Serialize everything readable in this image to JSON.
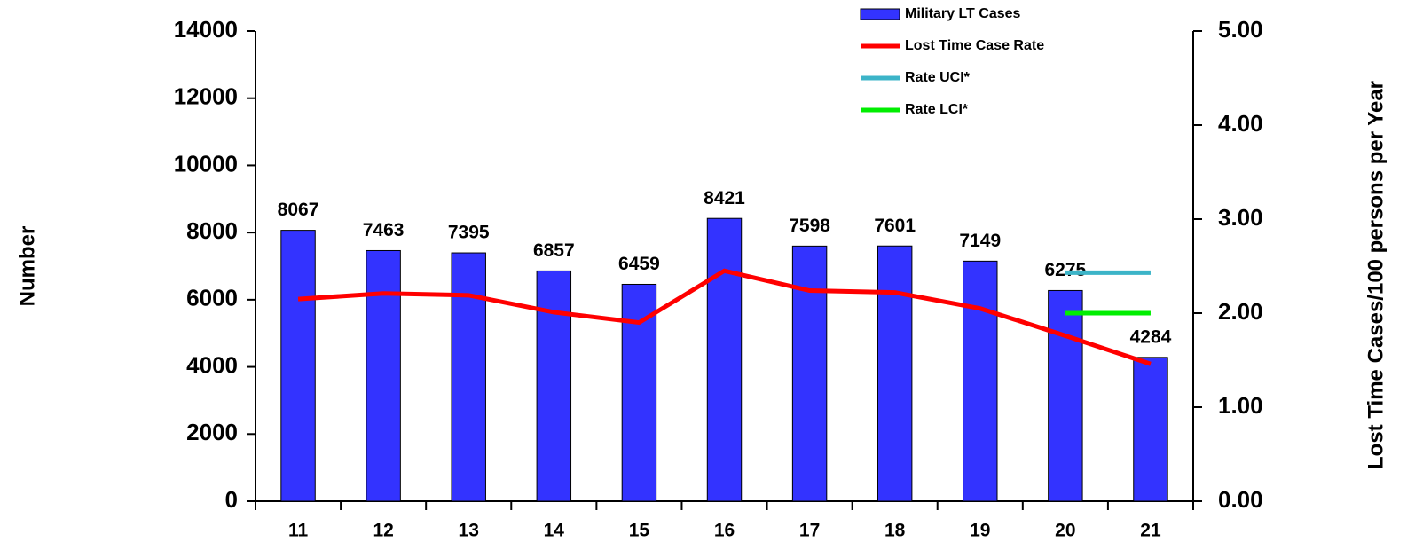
{
  "chart_data": {
    "type": "bar",
    "y_label": "Number",
    "y2_label": "Lost Time Cases/100 persons per Year",
    "categories": [
      "11",
      "12",
      "13",
      "14",
      "15",
      "16",
      "17",
      "18",
      "19",
      "20",
      "21"
    ],
    "series": [
      {
        "name": "Military LT Cases",
        "type": "bar",
        "axis": "y",
        "color": "#3333ff",
        "values": [
          8067,
          7463,
          7395,
          6857,
          6459,
          8421,
          7598,
          7601,
          7149,
          6275,
          4284
        ]
      },
      {
        "name": "Lost Time Case Rate",
        "type": "line",
        "axis": "y2",
        "color": "#ff0000",
        "values": [
          2.15,
          2.21,
          2.19,
          2.01,
          1.9,
          2.45,
          2.24,
          2.22,
          2.05,
          1.76,
          1.46
        ]
      },
      {
        "name": "Rate UCI*",
        "type": "line",
        "axis": "y2",
        "color": "#3cb4c8",
        "values": [
          null,
          null,
          null,
          null,
          null,
          null,
          null,
          null,
          null,
          2.43,
          2.43
        ]
      },
      {
        "name": "Rate LCI*",
        "type": "line",
        "axis": "y2",
        "color": "#00ee00",
        "values": [
          null,
          null,
          null,
          null,
          null,
          null,
          null,
          null,
          null,
          2.0,
          2.0
        ]
      }
    ],
    "ylim": [
      0,
      14000
    ],
    "yticks": [
      0,
      2000,
      4000,
      6000,
      8000,
      10000,
      12000,
      14000
    ],
    "y2lim": [
      0,
      5
    ],
    "y2ticks": [
      {
        "value": 0,
        "label": "0.00"
      },
      {
        "value": 1,
        "label": "1.00"
      },
      {
        "value": 2,
        "label": "2.00"
      },
      {
        "value": 3,
        "label": "3.00"
      },
      {
        "value": 4,
        "label": "4.00"
      },
      {
        "value": 5,
        "label": "5.00"
      }
    ],
    "grid": false,
    "legend": "top-right"
  }
}
